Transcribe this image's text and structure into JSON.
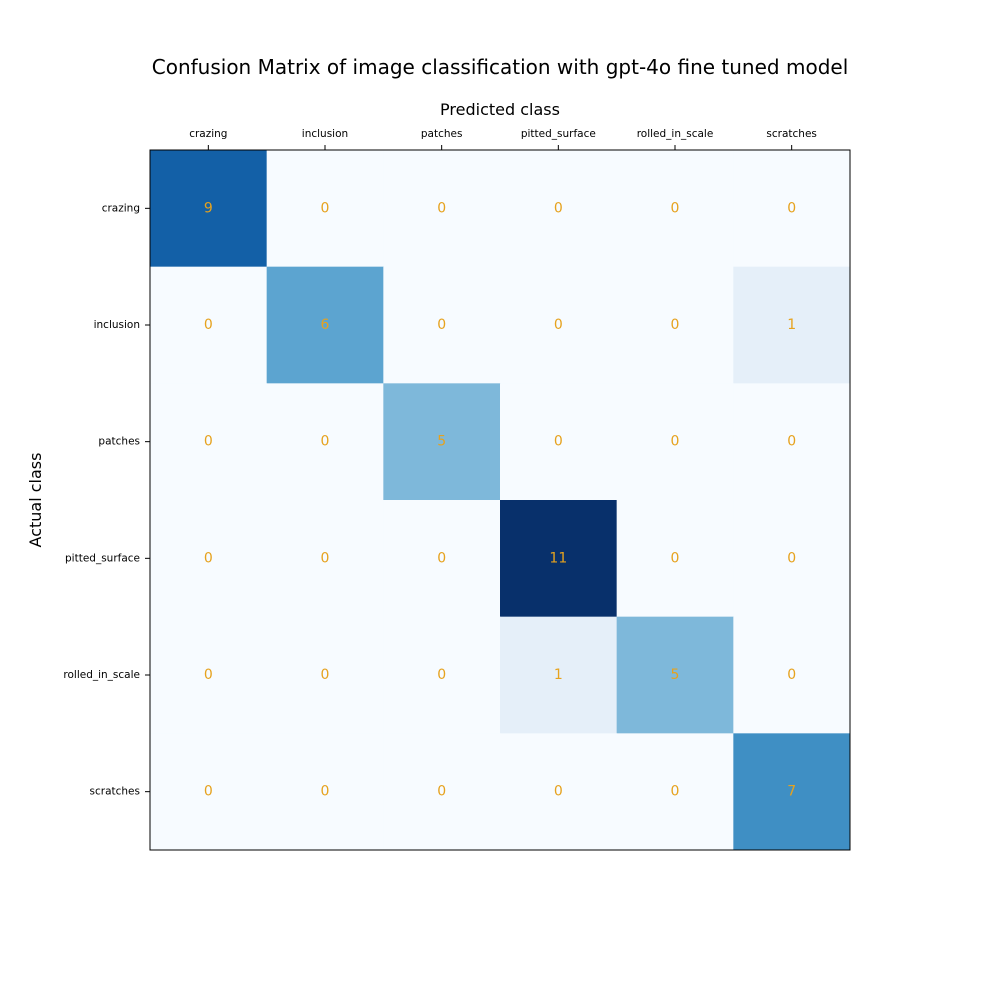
{
  "chart_data": {
    "type": "heatmap",
    "title": "Confusion Matrix of image classification with gpt-4o fine tuned model",
    "xlabel": "Predicted class",
    "ylabel": "Actual class",
    "x_categories": [
      "crazing",
      "inclusion",
      "patches",
      "pitted_surface",
      "rolled_in_scale",
      "scratches"
    ],
    "y_categories": [
      "crazing",
      "inclusion",
      "patches",
      "pitted_surface",
      "rolled_in_scale",
      "scratches"
    ],
    "values": [
      [
        9,
        0,
        0,
        0,
        0,
        0
      ],
      [
        0,
        6,
        0,
        0,
        0,
        1
      ],
      [
        0,
        0,
        5,
        0,
        0,
        0
      ],
      [
        0,
        0,
        0,
        11,
        0,
        0
      ],
      [
        0,
        0,
        0,
        1,
        5,
        0
      ],
      [
        0,
        0,
        0,
        0,
        0,
        7
      ]
    ],
    "value_range": [
      0,
      11
    ],
    "colormap": "Blues",
    "x_axis_position": "top",
    "grid": false,
    "colors": {
      "cell_text": "#e6a21e",
      "frame": "#000000"
    }
  }
}
